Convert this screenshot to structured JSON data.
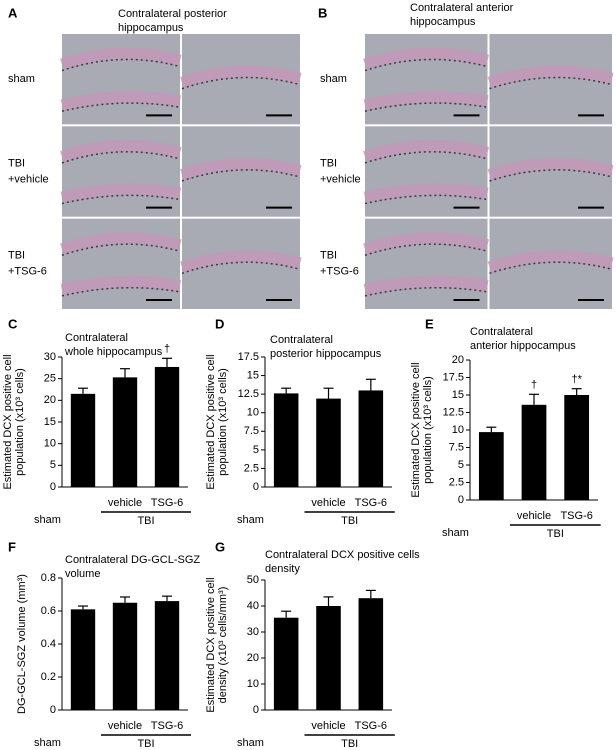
{
  "panels": [
    {
      "letter": "A",
      "title": [
        "Contralateral posterior",
        "hippocampus"
      ],
      "rows": [
        [
          "sham"
        ],
        [
          "TBI",
          "+vehicle"
        ],
        [
          "TBI",
          "+TSG-6"
        ]
      ]
    },
    {
      "letter": "B",
      "title": [
        "Contralateral anterior",
        "hippocampus"
      ],
      "rows": [
        [
          "sham"
        ],
        [
          "TBI",
          "+vehicle"
        ],
        [
          "TBI",
          "+TSG-6"
        ]
      ]
    }
  ],
  "chart_data": [
    {
      "type": "bar",
      "letter": "C",
      "title": [
        "Contralateral",
        "whole hippocampus"
      ],
      "ylabel": [
        "Estimated DCX positive cell",
        "population (x10³ cells)"
      ],
      "categories": [
        "sham",
        "vehicle",
        "TSG-6"
      ],
      "group_label": "TBI",
      "values": [
        21.5,
        25.3,
        27.7
      ],
      "errors": [
        1.3,
        2,
        2
      ],
      "bar_marks": [
        null,
        null,
        "†"
      ],
      "color": "#000000",
      "ylim": [
        0,
        30
      ],
      "yticks": [
        0,
        5,
        10,
        15,
        20,
        25,
        30
      ]
    },
    {
      "type": "bar",
      "letter": "D",
      "title": [
        "Contralateral",
        "posterior  hippocampus"
      ],
      "ylabel": [
        "Estimated DCX positive cell",
        "population (x10³ cells)"
      ],
      "categories": [
        "sham",
        "vehicle",
        "TSG-6"
      ],
      "group_label": "TBI",
      "values": [
        12.6,
        11.9,
        13.0
      ],
      "errors": [
        0.7,
        1.4,
        1.5
      ],
      "bar_marks": [
        null,
        null,
        null
      ],
      "color": "#000000",
      "ylim": [
        0,
        17.5
      ],
      "yticks": [
        0,
        2.5,
        5,
        7.5,
        10,
        12.5,
        15,
        17.5
      ]
    },
    {
      "type": "bar",
      "letter": "E",
      "title": [
        "Contralateral",
        "anterior hippocampus"
      ],
      "ylabel": [
        "Estimated DCX positive cell",
        "population (x10³ cells)"
      ],
      "categories": [
        "sham",
        "vehicle",
        "TSG-6"
      ],
      "group_label": "TBI",
      "values": [
        9.7,
        13.6,
        15.0
      ],
      "errors": [
        0.7,
        1.5,
        0.9
      ],
      "bar_marks": [
        null,
        "†",
        "†*"
      ],
      "color": "#000000",
      "ylim": [
        0,
        20
      ],
      "yticks": [
        0,
        2.5,
        5,
        7.5,
        10,
        12.5,
        15,
        17.5,
        20
      ]
    },
    {
      "type": "bar",
      "letter": "F",
      "title": [
        "Contralateral DG-GCL-SGZ",
        "volume"
      ],
      "ylabel": [
        "DG-GCL-SGZ volume (mm³)"
      ],
      "categories": [
        "sham",
        "vehicle",
        "TSG-6"
      ],
      "group_label": "TBI",
      "values": [
        0.61,
        0.65,
        0.66
      ],
      "errors": [
        0.02,
        0.035,
        0.03
      ],
      "bar_marks": [
        null,
        null,
        null
      ],
      "color": "#000000",
      "ylim": [
        0,
        0.8
      ],
      "yticks": [
        0,
        0.2,
        0.4,
        0.6,
        0.8
      ]
    },
    {
      "type": "bar",
      "letter": "G",
      "title": [
        "Contralateral DCX positive cells",
        "density"
      ],
      "ylabel": [
        "Estimated DCX positive cell",
        "density (x10³ cells/mm³)"
      ],
      "categories": [
        "sham",
        "vehicle",
        "TSG-6"
      ],
      "group_label": "TBI",
      "values": [
        35.5,
        40,
        43
      ],
      "errors": [
        2.5,
        3.5,
        3
      ],
      "bar_marks": [
        null,
        null,
        null
      ],
      "color": "#000000",
      "ylim": [
        0,
        50
      ],
      "yticks": [
        0,
        10,
        20,
        30,
        40,
        50
      ]
    }
  ]
}
